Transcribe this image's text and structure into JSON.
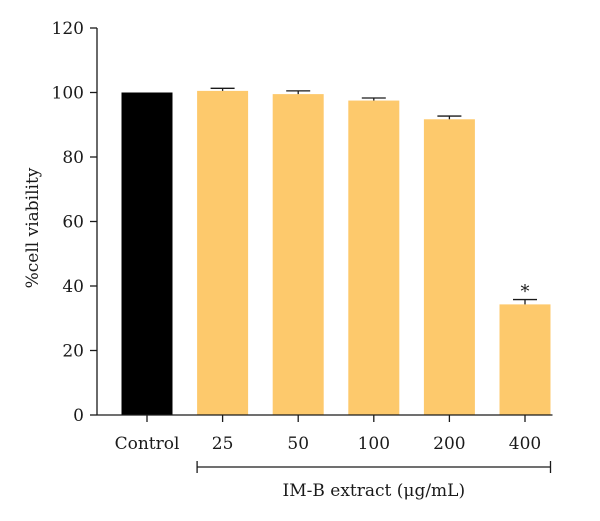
{
  "chart_data": {
    "type": "bar",
    "title": "",
    "xlabel": "",
    "ylabel": "%cell viability",
    "ylim": [
      0,
      120
    ],
    "yticks": [
      0,
      20,
      40,
      60,
      80,
      100,
      120
    ],
    "categories": [
      "Control",
      "25",
      "50",
      "100",
      "200",
      "400"
    ],
    "values": [
      100,
      100.5,
      99.5,
      97.5,
      91.7,
      34.3
    ],
    "errors": [
      0,
      0.8,
      1.0,
      0.8,
      1.0,
      1.5
    ],
    "bar_colors": [
      "#000000",
      "#fdc96c",
      "#fdc96c",
      "#fdc96c",
      "#fdc96c",
      "#fdc96c"
    ],
    "significance": [
      "",
      "",
      "",
      "",
      "",
      "*"
    ],
    "group_bracket": {
      "label": "IM-B extract (μg/mL)",
      "from_category": 1,
      "to_category": 5
    },
    "grid": false,
    "legend": "none"
  }
}
